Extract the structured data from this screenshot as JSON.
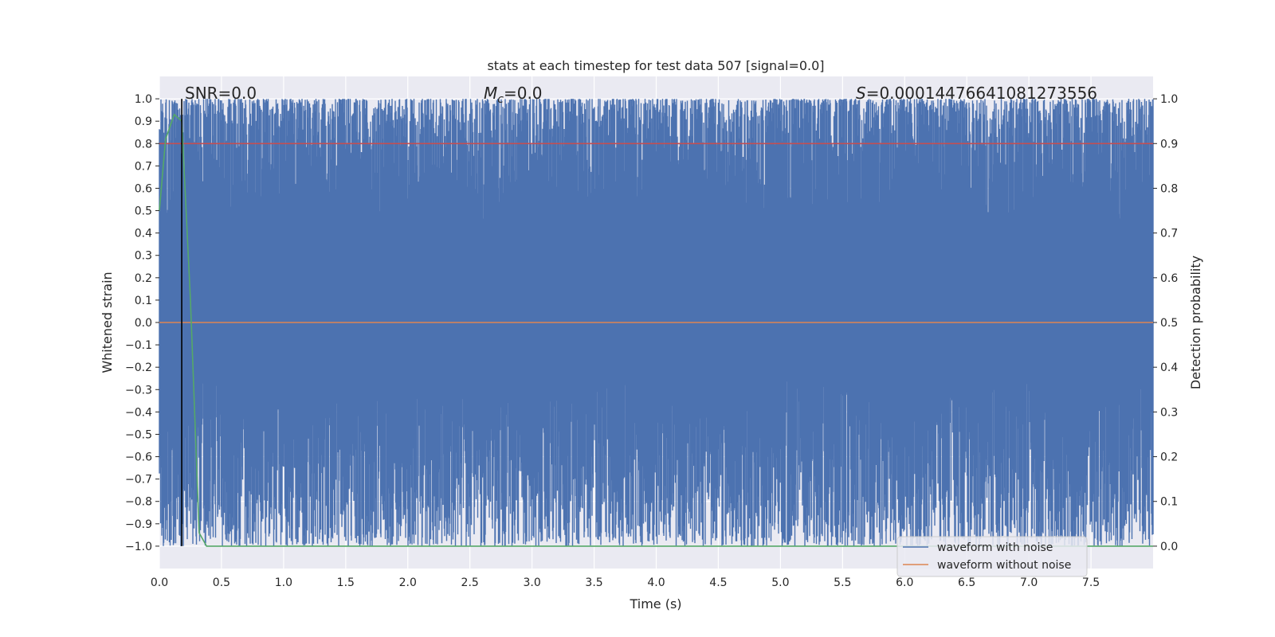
{
  "chart_data": {
    "type": "line",
    "title": "stats at each timestep for test data 507 [signal=0.0]",
    "xlabel": "Time (s)",
    "ylabel": "Whitened strain",
    "ylabel_right": "Detection probability",
    "xlim": [
      0.0,
      8.0
    ],
    "ylim": [
      -1.1,
      1.1
    ],
    "ylim_right": [
      -0.05,
      1.05
    ],
    "xticks": [
      0.0,
      0.5,
      1.0,
      1.5,
      2.0,
      2.5,
      3.0,
      3.5,
      4.0,
      4.5,
      5.0,
      5.5,
      6.0,
      6.5,
      7.0,
      7.5
    ],
    "xtick_labels": [
      "0.0",
      "0.5",
      "1.0",
      "1.5",
      "2.0",
      "2.5",
      "3.0",
      "3.5",
      "4.0",
      "4.5",
      "5.0",
      "5.5",
      "6.0",
      "6.5",
      "7.0",
      "7.5"
    ],
    "yticks": [
      1.0,
      0.9,
      0.8,
      0.7,
      0.6,
      0.5,
      0.4,
      0.3,
      0.2,
      0.1,
      0.0,
      -0.1,
      -0.2,
      -0.3,
      -0.4,
      -0.5,
      -0.6,
      -0.7,
      -0.8,
      -0.9,
      -1.0
    ],
    "ytick_labels": [
      "1.0",
      "0.9",
      "0.8",
      "0.7",
      "0.6",
      "0.5",
      "0.4",
      "0.3",
      "0.2",
      "0.1",
      "0.0",
      "−0.1",
      "−0.2",
      "−0.3",
      "−0.4",
      "−0.5",
      "−0.6",
      "−0.7",
      "−0.8",
      "−0.9",
      "−1.0"
    ],
    "yticks_right": [
      1.0,
      0.9,
      0.8,
      0.7,
      0.6,
      0.5,
      0.4,
      0.3,
      0.2,
      0.1,
      0.0
    ],
    "ytick_labels_right": [
      "1.0",
      "0.9",
      "0.8",
      "0.7",
      "0.6",
      "0.5",
      "0.4",
      "0.3",
      "0.2",
      "0.1",
      "0.0"
    ],
    "grid": true,
    "background": "#eaeaf2",
    "annotations": {
      "snr": "SNR=0.0",
      "mc_symbol": "M",
      "mc_sub": "c",
      "mc_value": "=0.0",
      "s_symbol": "S",
      "s_value": "=0.00014476641081273556"
    },
    "vertical_marker_x": 0.18,
    "legend_position": "lower right",
    "series": [
      {
        "name": "waveform with noise",
        "color": "#4c72b0",
        "axis": "left",
        "description_range": [
          -1.0,
          1.0
        ]
      },
      {
        "name": "waveform without noise",
        "color": "#dd8452",
        "axis": "left",
        "x": [
          0.0,
          8.0
        ],
        "y": [
          0.0,
          0.0
        ]
      },
      {
        "color": "#c44e52",
        "axis": "right",
        "x": [
          0.0,
          8.0
        ],
        "y": [
          0.9,
          0.9
        ]
      },
      {
        "color": "#55a868",
        "axis": "right",
        "x": [
          0.0,
          0.05,
          0.12,
          0.18,
          0.25,
          0.32,
          0.38,
          0.5,
          8.0
        ],
        "y": [
          0.75,
          0.91,
          0.965,
          0.95,
          0.55,
          0.03,
          0.0,
          0.0,
          0.0
        ]
      }
    ],
    "legend": [
      "waveform with noise",
      "waveform without noise"
    ]
  }
}
